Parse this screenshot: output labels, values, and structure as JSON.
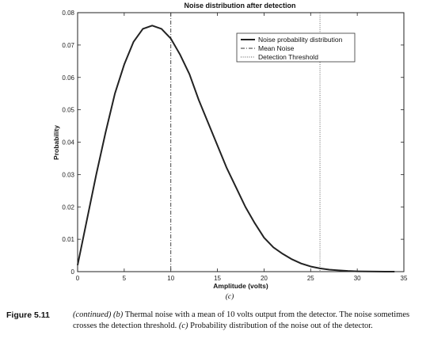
{
  "chart_data": {
    "type": "line",
    "title": "Noise distribution after detection",
    "xlabel": "Amplitude (volts)",
    "ylabel": "Probability",
    "panel_label": "(c)",
    "xlim": [
      0,
      35
    ],
    "ylim": [
      0,
      0.08
    ],
    "xticks": [
      0,
      5,
      10,
      15,
      20,
      25,
      30,
      35
    ],
    "yticks": [
      0,
      0.01,
      0.02,
      0.03,
      0.04,
      0.05,
      0.06,
      0.07,
      0.08
    ],
    "xtick_labels": [
      "0",
      "5",
      "10",
      "15",
      "20",
      "25",
      "30",
      "35"
    ],
    "ytick_labels": [
      "0",
      "0.01",
      "0.02",
      "0.03",
      "0.04",
      "0.05",
      "0.06",
      "0.07",
      "0.08"
    ],
    "grid": false,
    "legend_position": "top-right",
    "series": [
      {
        "name": "Noise probability distribution",
        "style": "solid",
        "x": [
          0,
          1,
          2,
          3,
          4,
          5,
          6,
          7,
          8,
          9,
          10,
          11,
          12,
          13,
          14,
          15,
          16,
          17,
          18,
          19,
          20,
          21,
          22,
          23,
          24,
          25,
          26,
          27,
          28,
          29,
          30,
          31,
          32,
          33,
          34
        ],
        "y": [
          0.002,
          0.016,
          0.03,
          0.043,
          0.055,
          0.064,
          0.071,
          0.075,
          0.076,
          0.075,
          0.072,
          0.067,
          0.061,
          0.053,
          0.046,
          0.039,
          0.032,
          0.026,
          0.02,
          0.015,
          0.0105,
          0.0075,
          0.0055,
          0.0038,
          0.0025,
          0.0016,
          0.001,
          0.0006,
          0.0004,
          0.0002,
          0.0001,
          5e-05,
          2e-05,
          1e-05,
          0.0
        ]
      },
      {
        "name": "Mean Noise",
        "style": "dashdot",
        "x_value": 10
      },
      {
        "name": "Detection Threshold",
        "style": "dotted",
        "x_value": 26
      }
    ]
  },
  "caption": {
    "label": "Figure 5.11",
    "continued": "(continued)",
    "part_b_label": "(b)",
    "part_b_text": "Thermal noise with a mean of 10 volts output from the detector. The noise sometimes crosses the detection threshold.",
    "part_c_label": "(c)",
    "part_c_text": "Probability distribution of the noise out of the detector."
  }
}
